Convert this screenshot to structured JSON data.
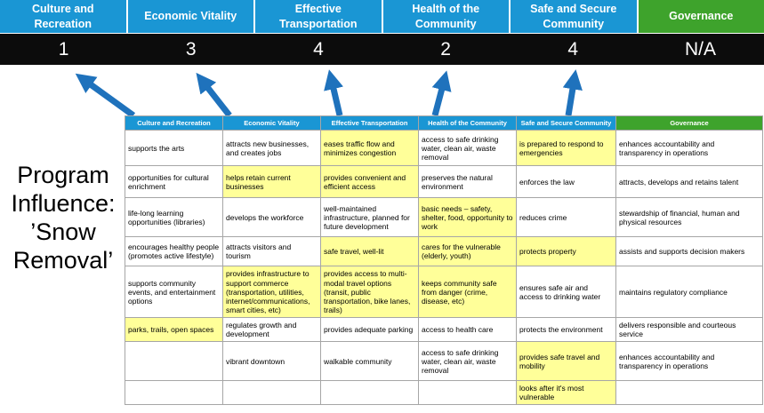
{
  "title": "Program Influence: ’Snow Removal’",
  "colors": {
    "header_blue": "#1a96d4",
    "header_green": "#3ea32c",
    "score_band": "#0c0c0c",
    "highlight_yellow": "#ffff99",
    "arrow_blue": "#1f72bc"
  },
  "scorecard": [
    {
      "label": "Culture and Recreation",
      "score": "1",
      "theme": "blue"
    },
    {
      "label": "Economic Vitality",
      "score": "3",
      "theme": "blue"
    },
    {
      "label": "Effective Transportation",
      "score": "4",
      "theme": "blue"
    },
    {
      "label": "Health of the Community",
      "score": "2",
      "theme": "blue"
    },
    {
      "label": "Safe and Secure Community",
      "score": "4",
      "theme": "blue"
    },
    {
      "label": "Governance",
      "score": "N/A",
      "theme": "green"
    }
  ],
  "matrix": {
    "headers": [
      {
        "label": "Culture and Recreation",
        "theme": "blue"
      },
      {
        "label": "Economic Vitality",
        "theme": "blue"
      },
      {
        "label": "Effective Transportation",
        "theme": "blue"
      },
      {
        "label": "Health of the Community",
        "theme": "blue"
      },
      {
        "label": "Safe and Secure Community",
        "theme": "blue"
      },
      {
        "label": "Governance",
        "theme": "green"
      }
    ],
    "rows": [
      [
        {
          "text": "supports the arts",
          "highlight": false
        },
        {
          "text": "attracts new businesses, and creates jobs",
          "highlight": false
        },
        {
          "text": "eases traffic flow and minimizes congestion",
          "highlight": true
        },
        {
          "text": "access to safe drinking water, clean air, waste removal",
          "highlight": false
        },
        {
          "text": "is prepared to respond to emergencies",
          "highlight": true
        },
        {
          "text": "enhances accountability and transparency in operations",
          "highlight": false
        }
      ],
      [
        {
          "text": "opportunities for cultural enrichment",
          "highlight": false
        },
        {
          "text": "helps retain current businesses",
          "highlight": true
        },
        {
          "text": "provides convenient and efficient access",
          "highlight": true
        },
        {
          "text": "preserves the natural environment",
          "highlight": false
        },
        {
          "text": "enforces the law",
          "highlight": false
        },
        {
          "text": "attracts, develops and retains talent",
          "highlight": false
        }
      ],
      [
        {
          "text": "life-long learning opportunities (libraries)",
          "highlight": false
        },
        {
          "text": "develops the workforce",
          "highlight": false
        },
        {
          "text": "well-maintained infrastructure, planned for future development",
          "highlight": false
        },
        {
          "text": "basic needs – safety, shelter, food, opportunity to work",
          "highlight": true
        },
        {
          "text": "reduces crime",
          "highlight": false
        },
        {
          "text": "stewardship of financial, human and physical resources",
          "highlight": false
        }
      ],
      [
        {
          "text": "encourages healthy people (promotes active lifestyle)",
          "highlight": false
        },
        {
          "text": "attracts visitors and tourism",
          "highlight": false
        },
        {
          "text": "safe travel, well-lit",
          "highlight": true
        },
        {
          "text": "cares for the vulnerable (elderly, youth)",
          "highlight": true
        },
        {
          "text": "protects property",
          "highlight": true
        },
        {
          "text": "assists and supports decision makers",
          "highlight": false
        }
      ],
      [
        {
          "text": "supports community events, and entertainment options",
          "highlight": false
        },
        {
          "text": "provides infrastructure to support commerce (transportation, utilities, internet/communications, smart cities, etc)",
          "highlight": true
        },
        {
          "text": "provides access to multi-modal travel options (transit, public transportation, bike lanes, trails)",
          "highlight": true
        },
        {
          "text": "keeps community safe from danger (crime, disease, etc)",
          "highlight": true
        },
        {
          "text": "ensures safe air and access to drinking water",
          "highlight": false
        },
        {
          "text": "maintains regulatory compliance",
          "highlight": false
        }
      ],
      [
        {
          "text": "parks, trails, open spaces",
          "highlight": true
        },
        {
          "text": "regulates growth and development",
          "highlight": false
        },
        {
          "text": "provides adequate parking",
          "highlight": false
        },
        {
          "text": "access to health care",
          "highlight": false
        },
        {
          "text": "protects the environment",
          "highlight": false
        },
        {
          "text": "delivers responsible and courteous service",
          "highlight": false
        }
      ],
      [
        {
          "text": "",
          "highlight": false
        },
        {
          "text": "vibrant downtown",
          "highlight": false
        },
        {
          "text": "walkable community",
          "highlight": false
        },
        {
          "text": "access to safe drinking water, clean air, waste removal",
          "highlight": false
        },
        {
          "text": "provides safe travel and mobility",
          "highlight": true
        },
        {
          "text": "enhances accountability and transparency in operations",
          "highlight": false
        }
      ],
      [
        {
          "text": "",
          "highlight": false
        },
        {
          "text": "",
          "highlight": false
        },
        {
          "text": "",
          "highlight": false
        },
        {
          "text": "",
          "highlight": false
        },
        {
          "text": "looks after it's most vulnerable",
          "highlight": true
        },
        {
          "text": "",
          "highlight": false
        }
      ]
    ]
  }
}
